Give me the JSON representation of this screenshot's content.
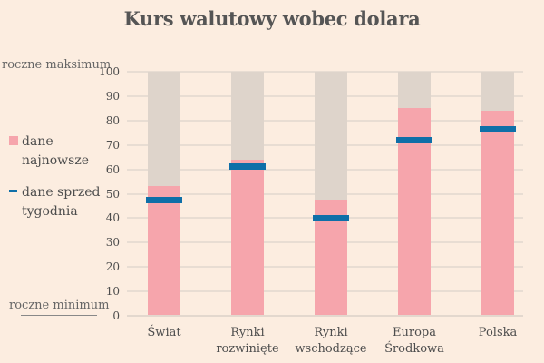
{
  "chart_data": {
    "type": "bar",
    "title": "Kurs walutowy wobec dolara",
    "xlabel": "",
    "ylabel": "",
    "ylim": [
      0,
      100
    ],
    "yticks": [
      0,
      10,
      20,
      30,
      40,
      50,
      60,
      70,
      80,
      90,
      100
    ],
    "grid": true,
    "legend_position": "left",
    "categories": [
      "Świat",
      "Rynki rozwinięte",
      "Rynki wschodzące",
      "Europa Środkowa",
      "Polska"
    ],
    "category_lines": [
      [
        "Świat"
      ],
      [
        "Rynki",
        "rozwinięte"
      ],
      [
        "Rynki",
        "wschodzące"
      ],
      [
        "Europa",
        "Środkowa"
      ],
      [
        "Polska"
      ]
    ],
    "series": [
      {
        "name": "dane najnowsze",
        "type": "bar",
        "color": "#f6a5ac",
        "values": [
          53,
          64,
          47.5,
          85,
          84
        ]
      },
      {
        "name": "dane sprzed tygodnia",
        "type": "marker",
        "color": "#0f6fa8",
        "values": [
          47.5,
          61,
          40,
          72,
          76.5
        ]
      }
    ],
    "background_range": {
      "name": "range",
      "color": "#ded4cb",
      "min": 0,
      "max": 100
    },
    "annotations": [
      {
        "text": "roczne maksimum",
        "y": 100
      },
      {
        "text": "roczne minimum",
        "y": 0
      }
    ]
  },
  "title": "Kurs walutowy wobec dolara",
  "annotations": {
    "max": "roczne maksimum",
    "min": "roczne minimum"
  },
  "legend": {
    "latest": {
      "line1": "dane",
      "line2": "najnowsze"
    },
    "prev": {
      "line1": "dane sprzed",
      "line2": "tygodnia"
    }
  },
  "yticks": [
    "0",
    "10",
    "20",
    "30",
    "40",
    "50",
    "60",
    "70",
    "80",
    "90",
    "100"
  ],
  "x": [
    {
      "l1": "Świat",
      "l2": ""
    },
    {
      "l1": "Rynki",
      "l2": "rozwinięte"
    },
    {
      "l1": "Rynki",
      "l2": "wschodzące"
    },
    {
      "l1": "Europa",
      "l2": "Środkowa"
    },
    {
      "l1": "Polska",
      "l2": ""
    }
  ]
}
